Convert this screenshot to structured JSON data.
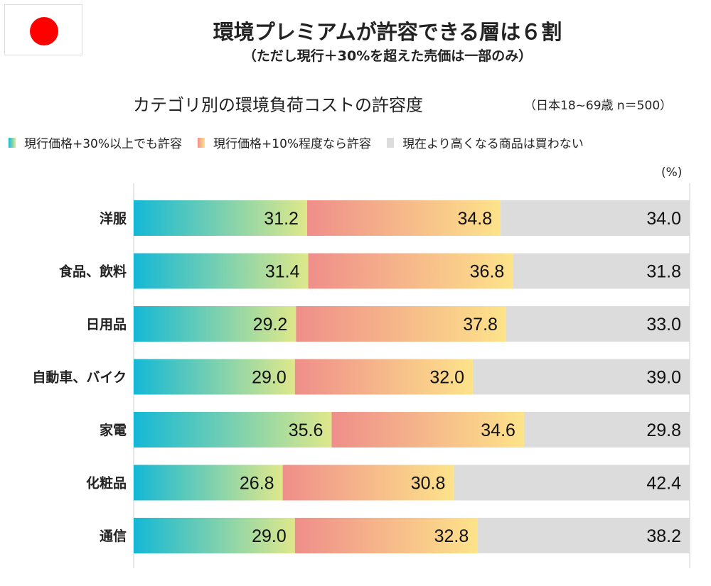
{
  "header": {
    "flag_icon": "japan-flag-icon",
    "title": "環境プレミアムが許容できる層は６割",
    "subtitle": "（ただし現行＋30%を超えた売価は一部のみ）"
  },
  "chart_data": {
    "type": "bar",
    "orientation": "horizontal",
    "stacked": true,
    "title": "カテゴリ別の環境負荷コストの許容度",
    "note": "（日本18~69歳 n＝500）",
    "unit": "(%)",
    "xlim": [
      0,
      100
    ],
    "legend_position": "top",
    "grid": false,
    "categories": [
      "洋服",
      "食品、飲料",
      "日用品",
      "自動車、バイク",
      "家電",
      "化粧品",
      "通信"
    ],
    "series": [
      {
        "name": "現行価格+30%以上でも許容",
        "values": [
          31.2,
          31.4,
          29.2,
          29.0,
          35.6,
          26.8,
          29.0
        ],
        "color_start": "#14b8d6",
        "color_end": "#dfe88a"
      },
      {
        "name": "現行価格+10%程度なら許容",
        "values": [
          34.8,
          36.8,
          37.8,
          32.0,
          34.6,
          30.8,
          32.8
        ],
        "color_start": "#ef8e8a",
        "color_end": "#fde38a"
      },
      {
        "name": "現在より高くなる商品は買わない",
        "values": [
          34.0,
          31.8,
          33.0,
          39.0,
          29.8,
          42.4,
          38.2
        ],
        "color_start": "#dcdcdc",
        "color_end": "#dcdcdc"
      }
    ]
  }
}
